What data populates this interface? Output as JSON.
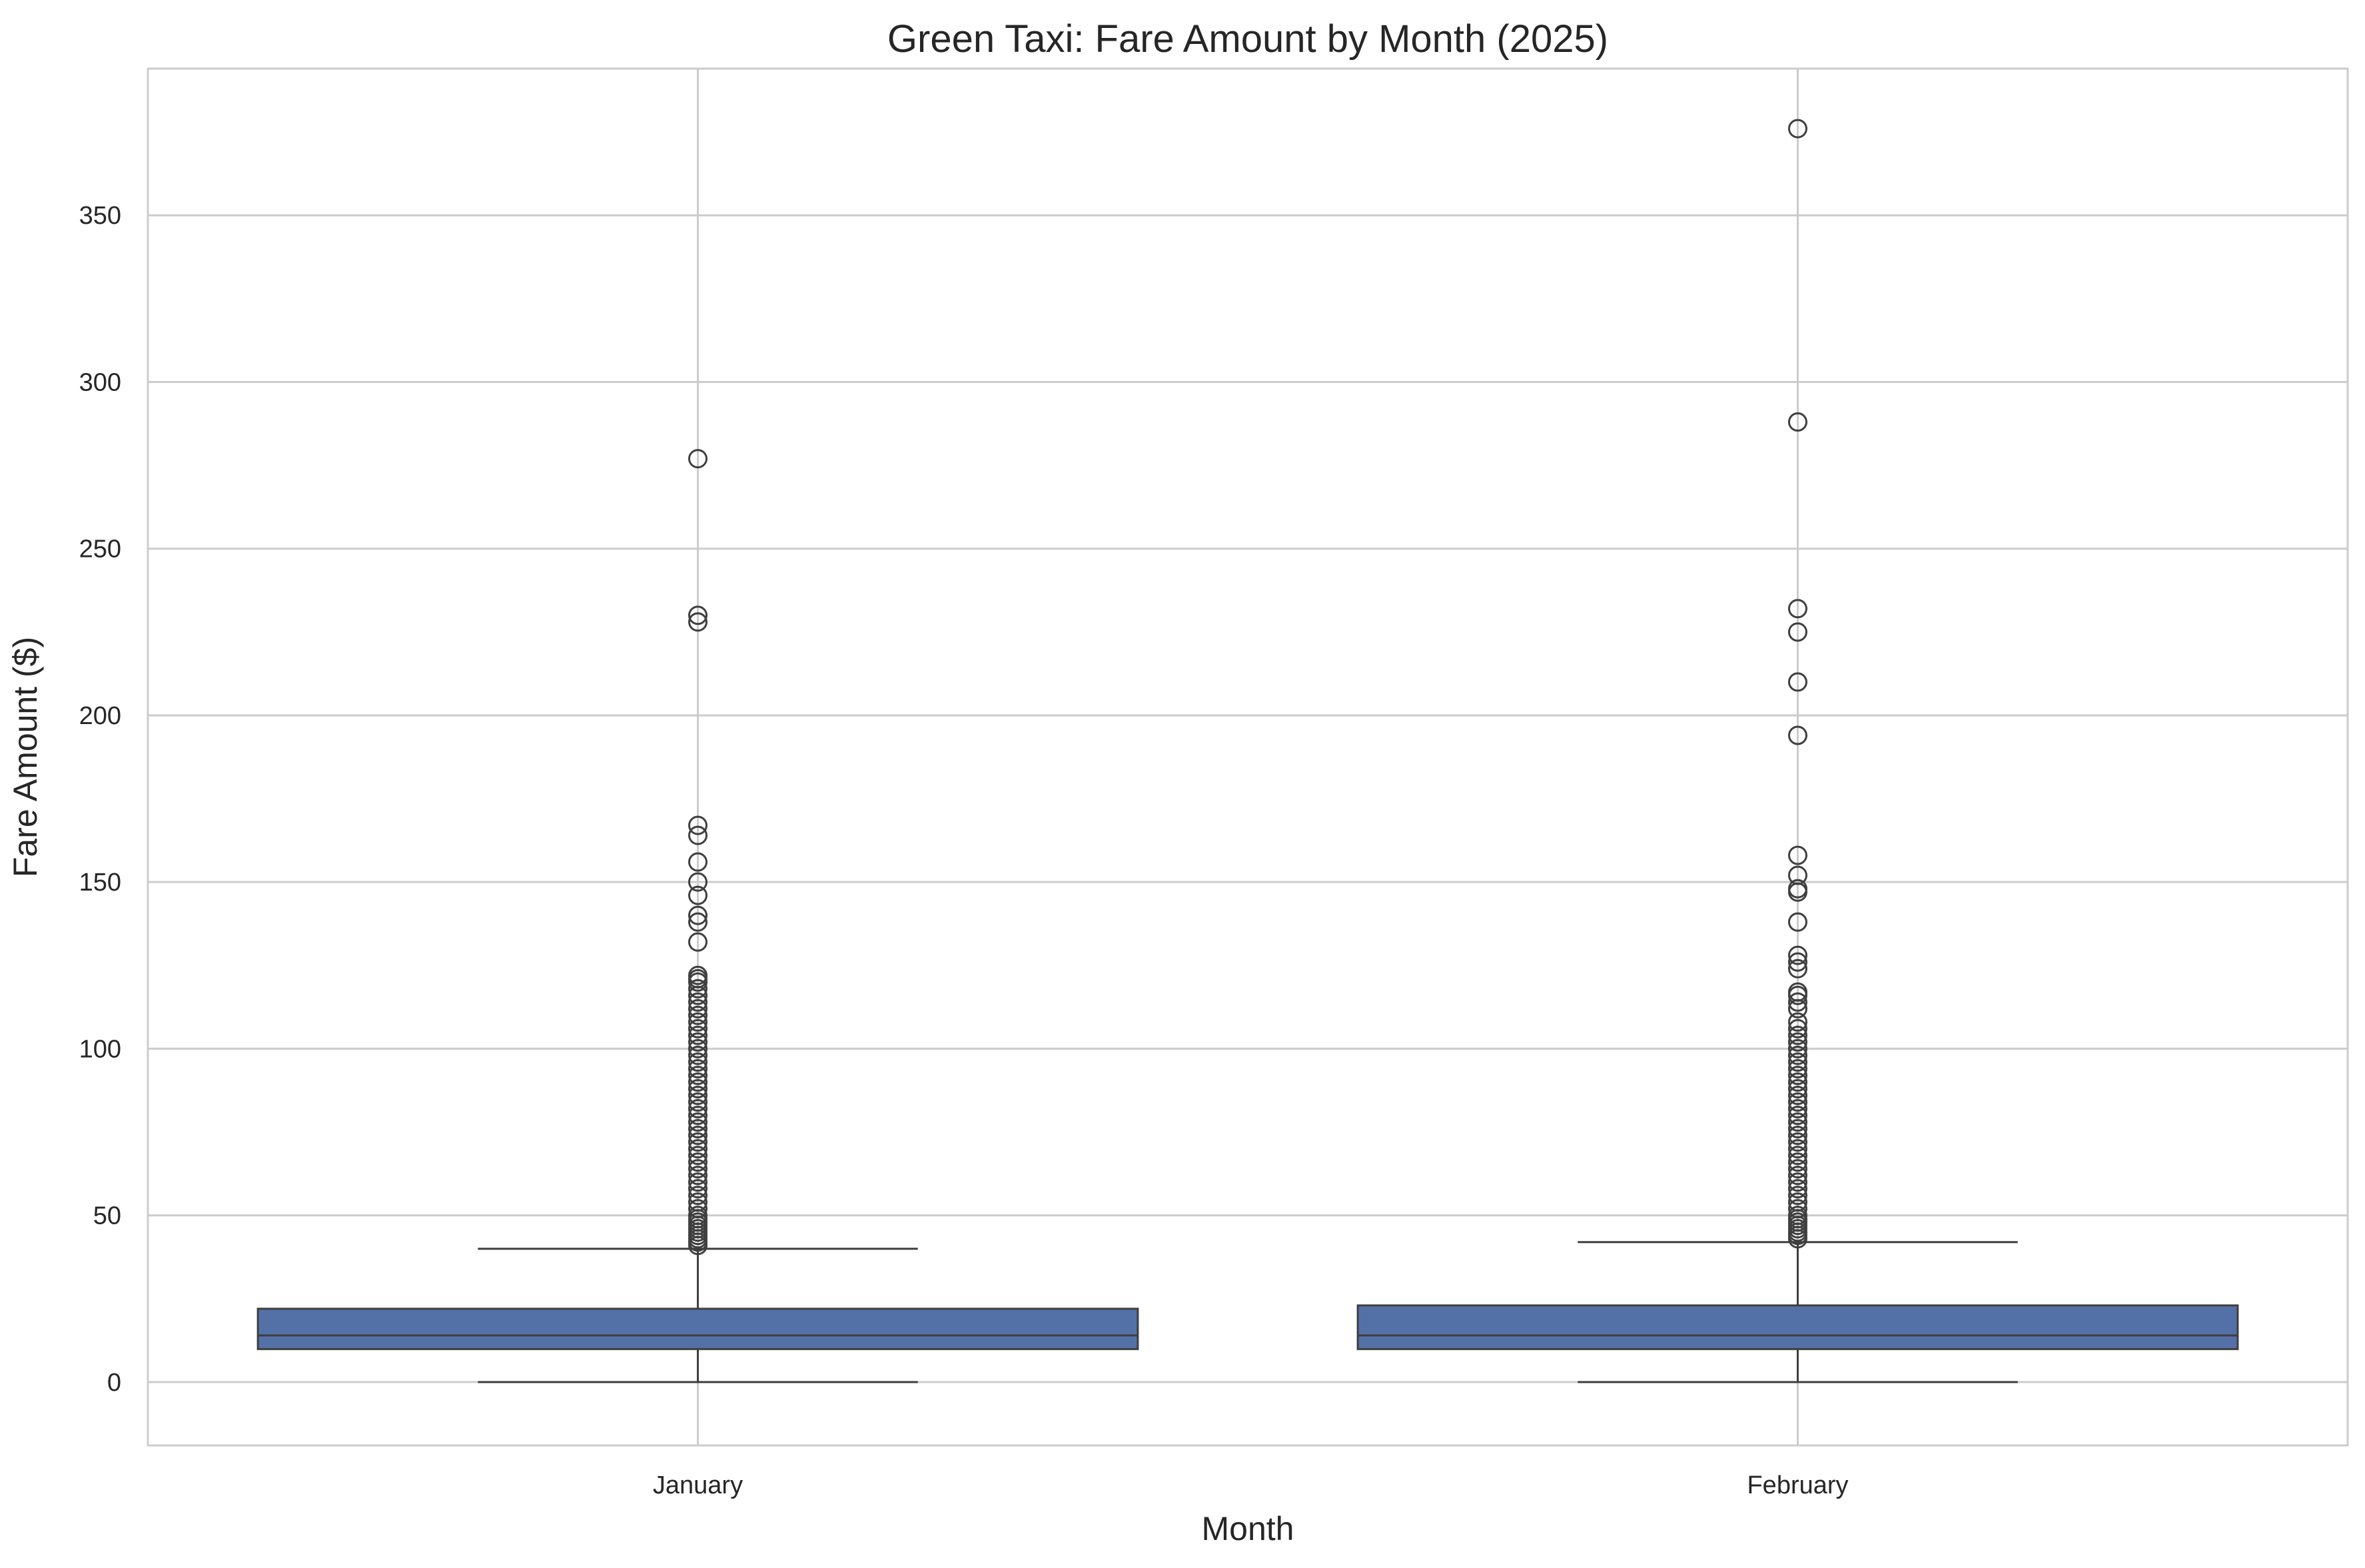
{
  "chart_data": {
    "type": "box",
    "title": "Green Taxi: Fare Amount by Month (2025)",
    "xlabel": "Month",
    "ylabel": "Fare Amount ($)",
    "categories": [
      "January",
      "February"
    ],
    "ylim": [
      -19,
      394
    ],
    "yticks": [
      0,
      50,
      100,
      150,
      200,
      250,
      300,
      350
    ],
    "grid": true,
    "box_color": "#5471a7",
    "edge_color": "#3f3f3f",
    "series": [
      {
        "category": "January",
        "whisker_low": 0,
        "q1": 9.9,
        "median": 14.0,
        "q3": 22.0,
        "whisker_high": 40.0,
        "outliers": [
          41,
          42,
          43,
          44,
          45,
          46,
          47,
          48,
          49,
          50,
          52,
          54,
          56,
          58,
          60,
          62,
          64,
          66,
          68,
          70,
          72,
          74,
          76,
          78,
          80,
          82,
          84,
          86,
          88,
          90,
          92,
          94,
          96,
          98,
          100,
          102,
          104,
          106,
          108,
          110,
          112,
          114,
          116,
          118,
          120,
          121,
          122,
          132,
          138,
          140,
          146,
          150,
          156,
          164,
          167,
          228,
          230,
          277
        ]
      },
      {
        "category": "February",
        "whisker_low": 0,
        "q1": 9.9,
        "median": 14.0,
        "q3": 23.0,
        "whisker_high": 42.0,
        "outliers": [
          43,
          44,
          45,
          46,
          47,
          48,
          49,
          50,
          52,
          54,
          56,
          58,
          60,
          62,
          64,
          66,
          68,
          70,
          72,
          74,
          76,
          78,
          80,
          82,
          84,
          86,
          88,
          90,
          92,
          94,
          96,
          98,
          100,
          102,
          104,
          106,
          108,
          112,
          114,
          116,
          117,
          124,
          126,
          128,
          138,
          147,
          148,
          152,
          158,
          194,
          210,
          225,
          232,
          288,
          376
        ]
      }
    ]
  }
}
